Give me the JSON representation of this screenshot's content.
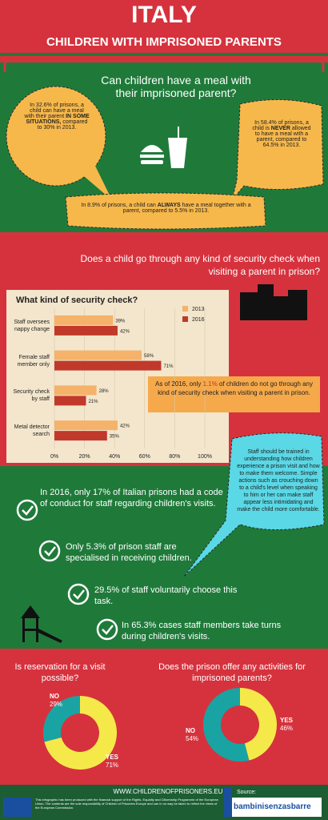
{
  "header": {
    "title": "ITALY",
    "subtitle": "CHILDREN WITH IMPRISONED PARENTS"
  },
  "meal": {
    "question": "Can children have a meal with their imprisoned parent?",
    "bubbles": [
      {
        "before": "In 32.6% of prisons, a child can have a meal with their parent ",
        "bold": "IN SOME SITUATIONS,",
        "after": " compared to 30% in 2013."
      },
      {
        "before": "In 58.4% of prisons, a child is ",
        "bold": "NEVER",
        "after": " allowed to have a meal with a parent, compared to 64.5% in 2013."
      },
      {
        "before": "In 8.9% of prisons, a child can ",
        "bold": "ALWAYS",
        "after": " have a meal together with a parent, compared to 5.5% in 2013."
      }
    ]
  },
  "security": {
    "question": "Does a child go through any kind of security check when visiting a parent in prison?",
    "note": {
      "before": "As of 2016, only ",
      "highlight": "1.1%",
      "after": " of children do not go through any kind of security check when visiting a parent in prison."
    }
  },
  "staff": {
    "items": [
      "In 2016, only 17% of Italian prisons had a code of conduct for staff regarding children's visits.",
      "Only 5.3% of prison staff are specialised in receiving children.",
      "29.5% of staff voluntarily choose this task.",
      "In 65.3% cases staff members take turns during children's visits."
    ],
    "tip": "Staff should be trained in understanding how children experience a prison visit and how to make them welcome. Simple actions such as crouching down to a child's level when speaking to him or her can make staff appear less intimidating and make the child more comfortable."
  },
  "chart_data": [
    {
      "type": "bar",
      "orientation": "horizontal",
      "title": "What kind of security check?",
      "categories": [
        "Staff oversees nappy change",
        "Female staff member only",
        "Security check by staff",
        "Metal detector search"
      ],
      "series": [
        {
          "name": "2013",
          "color": "#f4b26a",
          "values": [
            39,
            58,
            28,
            42
          ],
          "value_labels": [
            "39%",
            "58%",
            "28%",
            "42%"
          ]
        },
        {
          "name": "2016",
          "color": "#c0392b",
          "values": [
            42,
            71,
            21,
            35
          ],
          "value_labels": [
            "42%",
            "71%",
            "21%",
            "35%"
          ]
        }
      ],
      "xlim": [
        0,
        100
      ],
      "xticks": [
        {
          "value": 0,
          "label": "0%"
        },
        {
          "value": 20,
          "label": "20%"
        },
        {
          "value": 40,
          "label": "40%"
        },
        {
          "value": 60,
          "label": "60%"
        },
        {
          "value": 80,
          "label": "80%"
        },
        {
          "value": 100,
          "label": "100%"
        }
      ],
      "grid": true
    },
    {
      "type": "pie",
      "title": "Is reservation for a visit possible?",
      "categories": [
        "NO",
        "YES"
      ],
      "values": [
        29,
        71
      ],
      "value_labels": [
        "29%",
        "71%"
      ],
      "colors": [
        "#1aa3a3",
        "#f5e94a"
      ]
    },
    {
      "type": "pie",
      "title": "Does the prison offer any activities for imprisoned parents?",
      "categories": [
        "NO",
        "YES"
      ],
      "values": [
        54,
        46
      ],
      "value_labels": [
        "54%",
        "46%"
      ],
      "colors": [
        "#1aa3a3",
        "#f5e94a"
      ]
    }
  ],
  "footer": {
    "url": "WWW.CHILDRENOFPRISONERS.EU",
    "disclaimer": "This infographic has been produced with the financial support of the Rights, Equality and Citizenship Programme of the European Union. The contents are the sole responsibility of Children of Prisoners Europe and can in no way be taken to reflect the views of the European Commission.",
    "source": "Source:",
    "logo": "bambinisenzasbarre"
  }
}
